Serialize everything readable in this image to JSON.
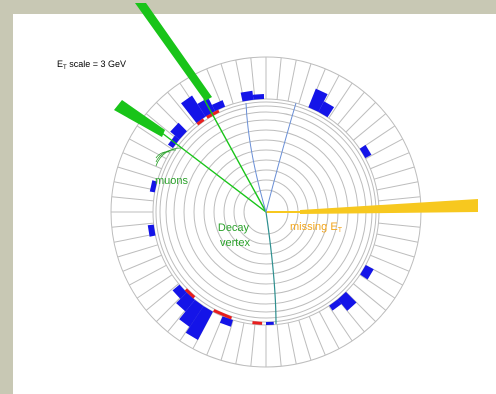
{
  "figure": {
    "scale_label_prefix": "E",
    "scale_label_sub": "T",
    "scale_label_rest": " scale = 3 GeV",
    "muons_label": "muons",
    "vertex_label_line1": "Decay",
    "vertex_label_line2": "vertex",
    "missing_label_text": "missing E",
    "missing_label_sub": "T"
  },
  "colors": {
    "frame": "#c8c8b4",
    "panel": "#ffffff",
    "ring_stroke": "#bdbdbd",
    "muon_track": "#19c419",
    "label_green": "#2aa12a",
    "missing_et": "#f7c81f",
    "missing_label": "#f2a51c",
    "hcal_deposit": "#1414e8",
    "ecal_deposit": "#e81e1e",
    "track_blue": "#6a8fd6",
    "track_teal": "#2e8f8f"
  },
  "icons": {
    "muon_spike": "green-wedge",
    "missing_et_spike": "yellow-wedge"
  }
}
